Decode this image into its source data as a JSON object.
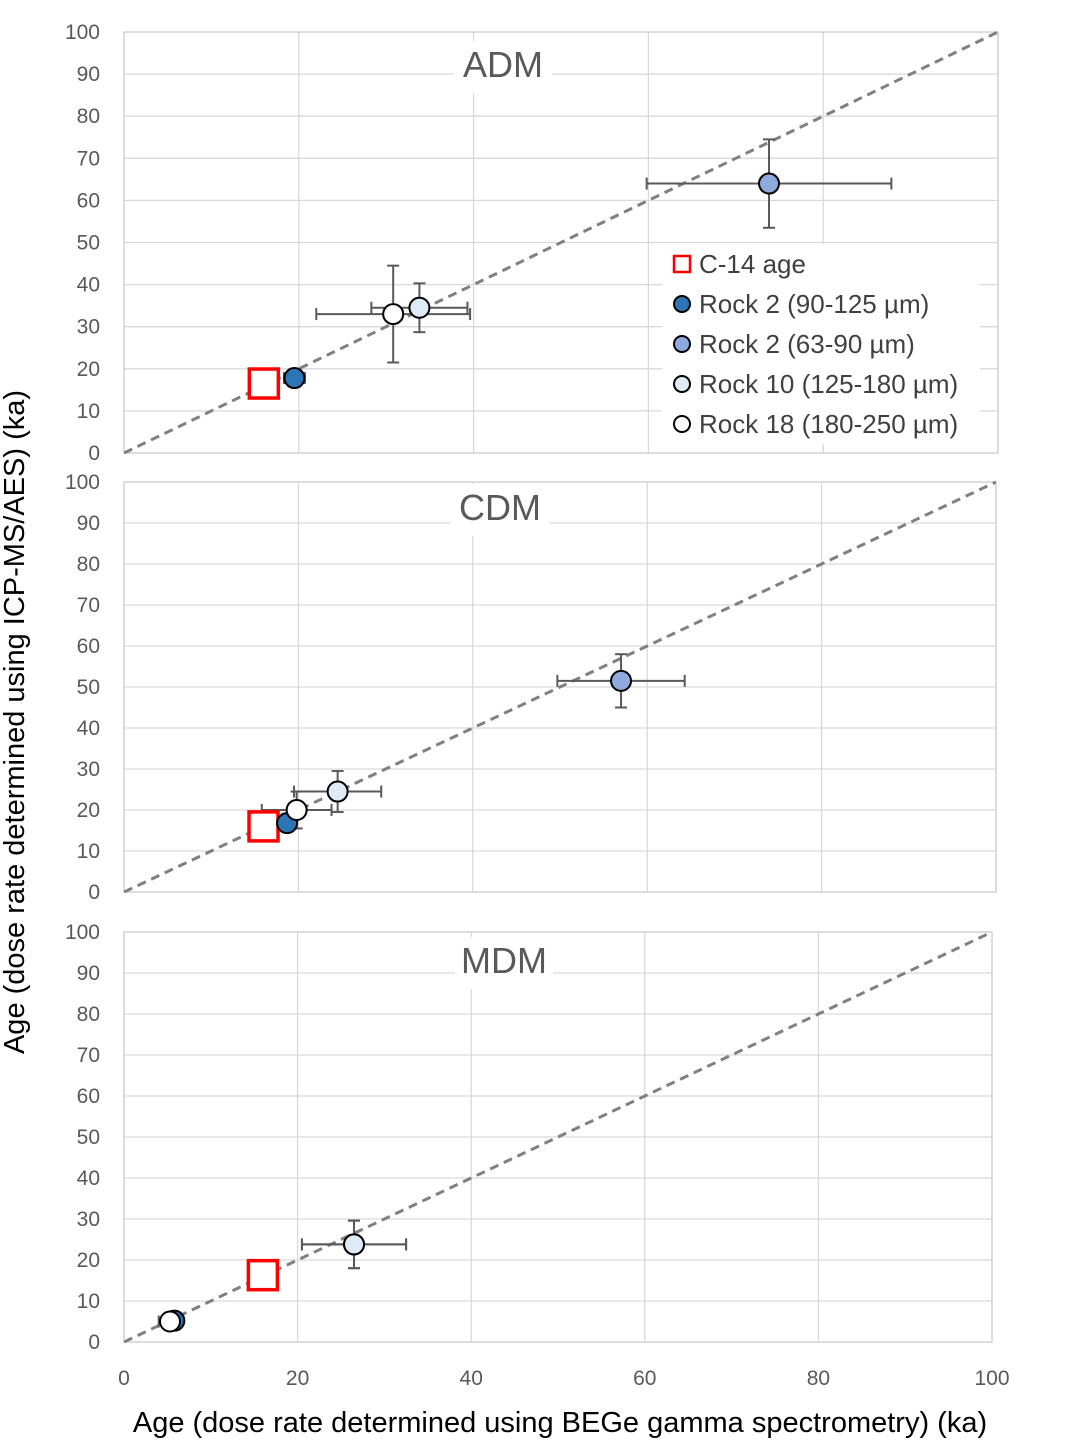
{
  "chart_data": {
    "type": "scatter",
    "ylabel": "Age (dose rate determined using ICP-MS/AES) (ka)",
    "xlabel": "Age (dose rate determined using BEGe gamma spectrometry) (ka)",
    "xlim": [
      0,
      100
    ],
    "ylim": [
      0,
      100
    ],
    "x_ticks": [
      "0",
      "20",
      "40",
      "60",
      "80",
      "100"
    ],
    "y_ticks": [
      "0",
      "10",
      "20",
      "30",
      "40",
      "50",
      "60",
      "70",
      "80",
      "90",
      "100"
    ],
    "grid": true,
    "reference_line": {
      "style": "dashed",
      "color": "#808080",
      "from": [
        0,
        0
      ],
      "to": [
        100,
        100
      ]
    },
    "legend": {
      "placement": "top panel, lower-right",
      "entries": [
        {
          "label": "C-14 age",
          "marker": "square",
          "fill": "#ffffff",
          "stroke": "#ff0000"
        },
        {
          "label": "Rock 2 (90-125 µm)",
          "marker": "circle",
          "fill": "#2e75b6",
          "stroke": "#000000"
        },
        {
          "label": "Rock 2 (63-90 µm)",
          "marker": "circle",
          "fill": "#8faadc",
          "stroke": "#000000"
        },
        {
          "label": "Rock 10 (125-180 µm)",
          "marker": "circle",
          "fill": "#deebf7",
          "stroke": "#000000"
        },
        {
          "label": "Rock 18 (180-250 µm)",
          "marker": "circle",
          "fill": "#ffffff",
          "stroke": "#000000"
        }
      ]
    },
    "panels": [
      {
        "title": "ADM",
        "points": [
          {
            "series": "C-14 age",
            "x": 16,
            "y": 16.5
          },
          {
            "series": "Rock 2 (90-125 µm)",
            "x": 19.5,
            "y": 17.8,
            "xerr": 1.2,
            "yerr": 1.2
          },
          {
            "series": "Rock 2 (63-90 µm)",
            "x": 73.8,
            "y": 64,
            "xerr": 14,
            "yerr": 10.5
          },
          {
            "series": "Rock 10 (125-180 µm)",
            "x": 33.8,
            "y": 34.5,
            "xerr": 5.5,
            "yerr": 5.8
          },
          {
            "series": "Rock 18 (180-250 µm)",
            "x": 30.8,
            "y": 33,
            "xerr": 8.8,
            "yerr": 11.5
          }
        ]
      },
      {
        "title": "CDM",
        "points": [
          {
            "series": "C-14 age",
            "x": 16,
            "y": 16,
            "xerr": 0,
            "yerr": 0
          },
          {
            "series": "Rock 2 (90-125 µm)",
            "x": 18.7,
            "y": 16.8,
            "xerr": 1,
            "yerr": 1.5
          },
          {
            "series": "Rock 2 (63-90 µm)",
            "x": 57,
            "y": 51.5,
            "xerr": 7.3,
            "yerr": 6.5
          },
          {
            "series": "Rock 10 (125-180 µm)",
            "x": 24.5,
            "y": 24.5,
            "xerr": 5,
            "yerr": 5
          },
          {
            "series": "Rock 18 (180-250 µm)",
            "x": 19.8,
            "y": 20,
            "xerr": 4,
            "yerr": 4.5
          }
        ]
      },
      {
        "title": "MDM",
        "points": [
          {
            "series": "C-14 age",
            "x": 16,
            "y": 16.3
          },
          {
            "series": "Rock 2 (63-90 µm)",
            "x": 26.5,
            "y": 23.8,
            "xerr": 6,
            "yerr": 5.8
          },
          {
            "series": "Rock 10 (125-180 µm)",
            "x": 26.5,
            "y": 23.8,
            "xerr": 6,
            "yerr": 5.8
          },
          {
            "series": "Rock 2 (90-125 µm)",
            "x": 5.8,
            "y": 5.2,
            "xerr": 0.8,
            "yerr": 0.8
          },
          {
            "series": "Rock 18 (180-250 µm)",
            "x": 5.3,
            "y": 5,
            "xerr": 1.3,
            "yerr": 1
          }
        ]
      }
    ]
  }
}
